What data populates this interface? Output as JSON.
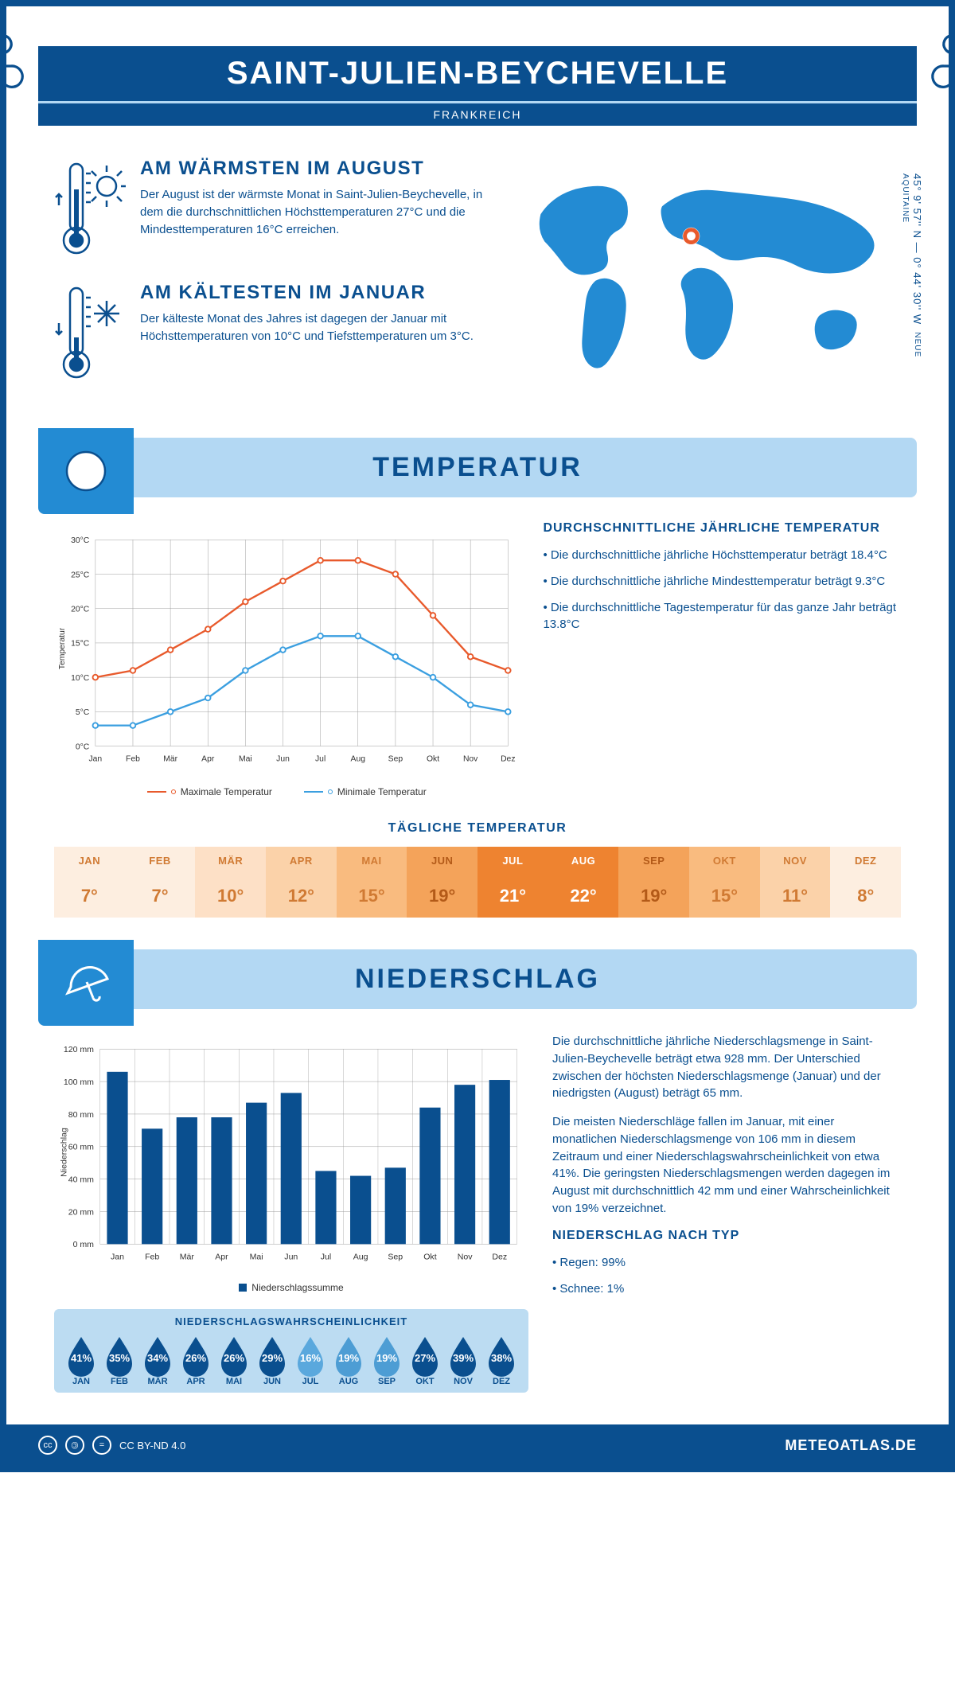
{
  "header": {
    "title": "SAINT-JULIEN-BEYCHEVELLE",
    "subtitle": "FRANKREICH",
    "coords": "45° 9' 57'' N — 0° 44' 30'' W",
    "region": "NEUE AQUITAINE"
  },
  "accent_color": "#0a4f8f",
  "light_blue": "#b3d8f3",
  "mid_blue": "#238bd3",
  "max_color": "#e85a2c",
  "min_color": "#3b9fe0",
  "warmest": {
    "title": "AM WÄRMSTEN IM AUGUST",
    "text": "Der August ist der wärmste Monat in Saint-Julien-Beychevelle, in dem die durchschnittlichen Höchsttemperaturen 27°C und die Mindesttemperaturen 16°C erreichen."
  },
  "coldest": {
    "title": "AM KÄLTESTEN IM JANUAR",
    "text": "Der kälteste Monat des Jahres ist dagegen der Januar mit Höchsttemperaturen von 10°C und Tiefsttemperaturen um 3°C."
  },
  "section_temp": "TEMPERATUR",
  "section_precip": "NIEDERSCHLAG",
  "temp_chart": {
    "ylabel": "Temperatur",
    "months": [
      "Jan",
      "Feb",
      "Mär",
      "Apr",
      "Mai",
      "Jun",
      "Jul",
      "Aug",
      "Sep",
      "Okt",
      "Nov",
      "Dez"
    ],
    "yticks": [
      0,
      5,
      10,
      15,
      20,
      25,
      30
    ],
    "ytick_labels": [
      "0°C",
      "5°C",
      "10°C",
      "15°C",
      "20°C",
      "25°C",
      "30°C"
    ],
    "max_series": [
      10,
      11,
      14,
      17,
      21,
      24,
      27,
      27,
      25,
      19,
      13,
      11
    ],
    "min_series": [
      3,
      3,
      5,
      7,
      11,
      14,
      16,
      16,
      13,
      10,
      6,
      5
    ],
    "legend_max": "Maximale Temperatur",
    "legend_min": "Minimale Temperatur",
    "grid_color": "#999",
    "ylim": [
      0,
      30
    ]
  },
  "temp_side": {
    "title": "DURCHSCHNITTLICHE JÄHRLICHE TEMPERATUR",
    "items": [
      "• Die durchschnittliche jährliche Höchsttemperatur beträgt 18.4°C",
      "• Die durchschnittliche jährliche Mindesttemperatur beträgt 9.3°C",
      "• Die durchschnittliche Tagestemperatur für das ganze Jahr beträgt 13.8°C"
    ]
  },
  "daily_temp": {
    "title": "TÄGLICHE TEMPERATUR",
    "months": [
      "JAN",
      "FEB",
      "MÄR",
      "APR",
      "MAI",
      "JUN",
      "JUL",
      "AUG",
      "SEP",
      "OKT",
      "NOV",
      "DEZ"
    ],
    "values": [
      "7°",
      "7°",
      "10°",
      "12°",
      "15°",
      "19°",
      "21°",
      "22°",
      "19°",
      "15°",
      "11°",
      "8°"
    ],
    "bg_colors": [
      "#fdeee0",
      "#fdeee0",
      "#fde0c6",
      "#fbd2a9",
      "#f9bb7f",
      "#f4a35a",
      "#ee8330",
      "#ee8330",
      "#f4a35a",
      "#f9bb7f",
      "#fbd2a9",
      "#fdeee0"
    ],
    "text_colors": [
      "#d07a33",
      "#d07a33",
      "#d07a33",
      "#d07a33",
      "#d07a33",
      "#b35a18",
      "#ffffff",
      "#ffffff",
      "#b35a18",
      "#d07a33",
      "#d07a33",
      "#d07a33"
    ]
  },
  "precip_chart": {
    "ylabel": "Niederschlag",
    "months": [
      "Jan",
      "Feb",
      "Mär",
      "Apr",
      "Mai",
      "Jun",
      "Jul",
      "Aug",
      "Sep",
      "Okt",
      "Nov",
      "Dez"
    ],
    "yticks": [
      0,
      20,
      40,
      60,
      80,
      100,
      120
    ],
    "ytick_labels": [
      "0 mm",
      "20 mm",
      "40 mm",
      "60 mm",
      "80 mm",
      "100 mm",
      "120 mm"
    ],
    "values": [
      106,
      71,
      78,
      78,
      87,
      93,
      45,
      42,
      47,
      84,
      98,
      101
    ],
    "bar_color": "#0a4f8f",
    "legend": "Niederschlagssumme",
    "ylim": [
      0,
      120
    ],
    "grid_color": "#999"
  },
  "precip_side": {
    "p1": "Die durchschnittliche jährliche Niederschlagsmenge in Saint-Julien-Beychevelle beträgt etwa 928 mm. Der Unterschied zwischen der höchsten Niederschlagsmenge (Januar) und der niedrigsten (August) beträgt 65 mm.",
    "p2": "Die meisten Niederschläge fallen im Januar, mit einer monatlichen Niederschlagsmenge von 106 mm in diesem Zeitraum und einer Niederschlagswahrscheinlichkeit von etwa 41%. Die geringsten Niederschlagsmengen werden dagegen im August mit durchschnittlich 42 mm und einer Wahrscheinlichkeit von 19% verzeichnet.",
    "type_title": "NIEDERSCHLAG NACH TYP",
    "type_items": [
      "• Regen: 99%",
      "• Schnee: 1%"
    ]
  },
  "precip_prob": {
    "title": "NIEDERSCHLAGSWAHRSCHEINLICHKEIT",
    "months": [
      "JAN",
      "FEB",
      "MÄR",
      "APR",
      "MAI",
      "JUN",
      "JUL",
      "AUG",
      "SEP",
      "OKT",
      "NOV",
      "DEZ"
    ],
    "pct": [
      "41%",
      "35%",
      "34%",
      "26%",
      "26%",
      "29%",
      "16%",
      "19%",
      "19%",
      "27%",
      "39%",
      "38%"
    ],
    "colors": [
      "#0a4f8f",
      "#0a4f8f",
      "#0a4f8f",
      "#0a4f8f",
      "#0a4f8f",
      "#0a4f8f",
      "#5aa8dd",
      "#4d9dd4",
      "#4d9dd4",
      "#0a4f8f",
      "#0a4f8f",
      "#0a4f8f"
    ]
  },
  "footer": {
    "license": "CC BY-ND 4.0",
    "site": "METEOATLAS.DE"
  }
}
